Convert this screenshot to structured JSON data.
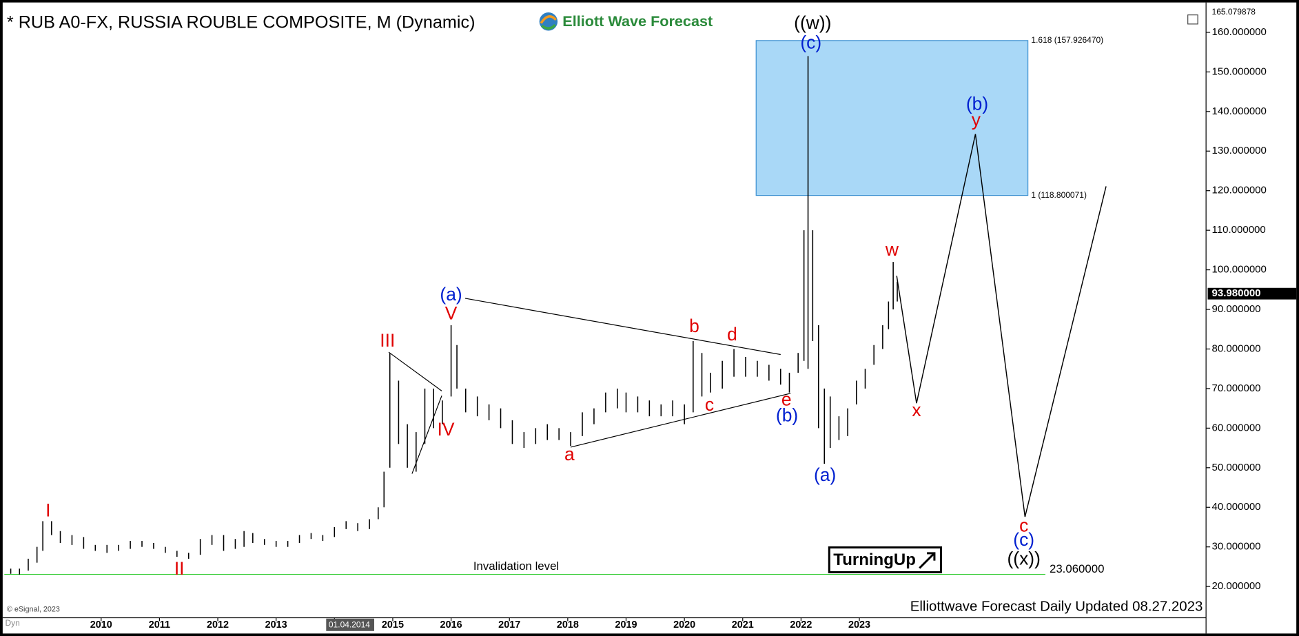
{
  "chart_data": {
    "type": "ohlc",
    "title": "* RUB A0-FX, RUSSIA ROUBLE COMPOSITE, M (Dynamic)",
    "logo_text": "Elliott Wave Forecast",
    "footer": "Elliottwave Forecast Daily Updated 08.27.2023",
    "source": "© eSignal, 2023",
    "mode_label": "Dyn",
    "badge": "TurningUp",
    "bar_color": "#000000",
    "xlim": [
      2008.34,
      2028.93
    ],
    "ylim": [
      12.3,
      166.5
    ],
    "xticks": [
      2010,
      2011,
      2012,
      2013,
      {
        "value": 2014,
        "label": "01.04.2014"
      },
      2015,
      2016,
      2017,
      2018,
      2019,
      2020,
      2021,
      2022,
      2023
    ],
    "yticks": [
      {
        "value": 20,
        "label": "20.000000"
      },
      {
        "value": 30,
        "label": "30.000000"
      },
      {
        "value": 40,
        "label": "40.000000"
      },
      {
        "value": 50,
        "label": "50.000000"
      },
      {
        "value": 60,
        "label": "60.000000"
      },
      {
        "value": 70,
        "label": "70.000000"
      },
      {
        "value": 80,
        "label": "80.000000"
      },
      {
        "value": 90,
        "label": "90.000000"
      },
      {
        "value": 100,
        "label": "100.000000"
      },
      {
        "value": 110,
        "label": "110.000000"
      },
      {
        "value": 120,
        "label": "120.000000"
      },
      {
        "value": 130,
        "label": "130.000000"
      },
      {
        "value": 140,
        "label": "140.000000"
      },
      {
        "value": 150,
        "label": "150.000000"
      },
      {
        "value": 160,
        "label": "160.000000"
      }
    ],
    "top_value": {
      "value": 165.079878,
      "label": "165.079878"
    },
    "last_price": {
      "value": 93.98,
      "label": "93.980000"
    },
    "x": [
      2008.45,
      2008.6,
      2008.75,
      2008.9,
      2009.0,
      2009.15,
      2009.3,
      2009.5,
      2009.7,
      2009.9,
      2010.1,
      2010.3,
      2010.5,
      2010.7,
      2010.9,
      2011.1,
      2011.3,
      2011.5,
      2011.7,
      2011.9,
      2012.1,
      2012.3,
      2012.45,
      2012.6,
      2012.8,
      2013.0,
      2013.2,
      2013.4,
      2013.6,
      2013.8,
      2014.0,
      2014.2,
      2014.4,
      2014.6,
      2014.75,
      2014.85,
      2014.95,
      2015.1,
      2015.25,
      2015.4,
      2015.55,
      2015.7,
      2015.85,
      2016.0,
      2016.1,
      2016.25,
      2016.45,
      2016.65,
      2016.85,
      2017.05,
      2017.25,
      2017.45,
      2017.65,
      2017.85,
      2018.05,
      2018.25,
      2018.45,
      2018.65,
      2018.85,
      2019.0,
      2019.2,
      2019.4,
      2019.6,
      2019.8,
      2020.0,
      2020.15,
      2020.3,
      2020.45,
      2020.65,
      2020.85,
      2021.05,
      2021.25,
      2021.45,
      2021.65,
      2021.8,
      2021.95,
      2022.05,
      2022.12,
      2022.2,
      2022.3,
      2022.4,
      2022.5,
      2022.65,
      2022.8,
      2022.95,
      2023.1,
      2023.25,
      2023.4,
      2023.5,
      2023.58,
      2023.65
    ],
    "high": [
      24.5,
      24.5,
      27,
      30,
      36.5,
      36.5,
      34,
      33,
      32.5,
      30.5,
      30.5,
      30.5,
      31.5,
      31.5,
      31,
      30,
      29,
      28.5,
      32,
      33,
      33,
      32,
      34,
      33.5,
      32,
      31.5,
      31.5,
      33,
      33.5,
      33,
      35,
      36.5,
      36,
      37,
      40,
      49,
      79,
      72,
      61,
      59,
      70,
      70,
      67,
      86,
      81,
      70,
      68,
      66,
      65,
      62,
      59,
      60,
      61,
      60,
      59,
      64,
      65,
      69,
      70,
      69,
      68,
      67,
      66,
      67,
      66,
      82,
      79,
      74,
      77,
      80,
      78,
      77,
      76,
      75,
      74,
      79,
      110,
      154,
      110,
      86,
      70,
      68,
      63,
      65,
      72,
      75,
      81,
      86,
      92,
      102,
      97
    ],
    "low": [
      23.2,
      23,
      24,
      26,
      29,
      33,
      31,
      30.5,
      29.5,
      29,
      28.5,
      29,
      29.5,
      30,
      29.5,
      28.5,
      27.5,
      27,
      28,
      30.5,
      29,
      29.5,
      30,
      31,
      30.5,
      30,
      30,
      31,
      32,
      31.5,
      32.5,
      34.5,
      34,
      34.5,
      37,
      40,
      50,
      56,
      50,
      49,
      56,
      60,
      61,
      68,
      70,
      64,
      63,
      62,
      60,
      56,
      55,
      56,
      57,
      57,
      55.5,
      58,
      61,
      64,
      65,
      64,
      64,
      63,
      63,
      63,
      61,
      64,
      68,
      69,
      70,
      73,
      73,
      73,
      72,
      71,
      69,
      74,
      77,
      75,
      82,
      60,
      51,
      55,
      57,
      58,
      66,
      70,
      76,
      80,
      85,
      90,
      92
    ],
    "trendlines": [
      {
        "x": [
          2016.24,
          2021.65
        ],
        "y": [
          92.8,
          78.6
        ]
      },
      {
        "x": [
          2018.05,
          2021.82
        ],
        "y": [
          55.2,
          68.8
        ]
      },
      {
        "x": [
          2014.93,
          2015.84
        ],
        "y": [
          79.2,
          69.4
        ]
      },
      {
        "x": [
          2015.33,
          2015.84
        ],
        "y": [
          48.5,
          68.2
        ]
      }
    ],
    "projection": {
      "x": [
        2023.64,
        2023.98,
        2024.99,
        2025.84,
        2027.23
      ],
      "y": [
        98.5,
        66.3,
        134.3,
        37.6,
        121.1
      ]
    },
    "target_box": {
      "x": [
        2021.23,
        2025.89
      ],
      "color": "#a9d8f7",
      "levels": [
        {
          "value": 157.92647,
          "label": "1.618 (157.926470)"
        },
        {
          "value": 118.800071,
          "label": "1 (118.800071)"
        }
      ]
    },
    "invalidation": {
      "value": 23.06,
      "label": "23.060000",
      "text": "Invalidation level",
      "color": "#33cc33"
    },
    "wave_labels": [
      {
        "text": "I",
        "color": "#e00000",
        "x": 2009.09,
        "y": 38.9
      },
      {
        "text": "II",
        "color": "#e00000",
        "x": 2011.34,
        "y": 24.2
      },
      {
        "text": "III",
        "color": "#e00000",
        "x": 2014.91,
        "y": 81.8
      },
      {
        "text": "IV",
        "color": "#e00000",
        "x": 2015.91,
        "y": 59.4
      },
      {
        "text": "V",
        "color": "#e00000",
        "x": 2016.0,
        "y": 88.7
      },
      {
        "text": "(a)",
        "color": "#0020d0",
        "x": 2016.0,
        "y": 93.5
      },
      {
        "text": "a",
        "color": "#e00000",
        "x": 2018.03,
        "y": 53.1
      },
      {
        "text": "b",
        "color": "#e00000",
        "x": 2020.17,
        "y": 85.5
      },
      {
        "text": "c",
        "color": "#e00000",
        "x": 2020.43,
        "y": 65.6
      },
      {
        "text": "d",
        "color": "#e00000",
        "x": 2020.82,
        "y": 83.4
      },
      {
        "text": "e",
        "color": "#e00000",
        "x": 2021.75,
        "y": 66.9
      },
      {
        "text": "(b)",
        "color": "#0020d0",
        "x": 2021.76,
        "y": 62.9
      },
      {
        "text": "((w))",
        "color": "#000000",
        "x": 2022.2,
        "y": 162.1
      },
      {
        "text": "(c)",
        "color": "#0020d0",
        "x": 2022.17,
        "y": 157.1
      },
      {
        "text": "(a)",
        "color": "#0020d0",
        "x": 2022.41,
        "y": 47.9
      },
      {
        "text": "w",
        "color": "#e00000",
        "x": 2023.56,
        "y": 104.8
      },
      {
        "text": "x",
        "color": "#e00000",
        "x": 2023.98,
        "y": 64.2
      },
      {
        "text": "(b)",
        "color": "#0020d0",
        "x": 2025.02,
        "y": 141.6
      },
      {
        "text": "y",
        "color": "#e00000",
        "x": 2025.0,
        "y": 137.6
      },
      {
        "text": "c",
        "color": "#e00000",
        "x": 2025.82,
        "y": 35.1
      },
      {
        "text": "(c)",
        "color": "#0020d0",
        "x": 2025.82,
        "y": 31.5
      },
      {
        "text": "((x))",
        "color": "#000000",
        "x": 2025.82,
        "y": 26.7
      }
    ]
  }
}
